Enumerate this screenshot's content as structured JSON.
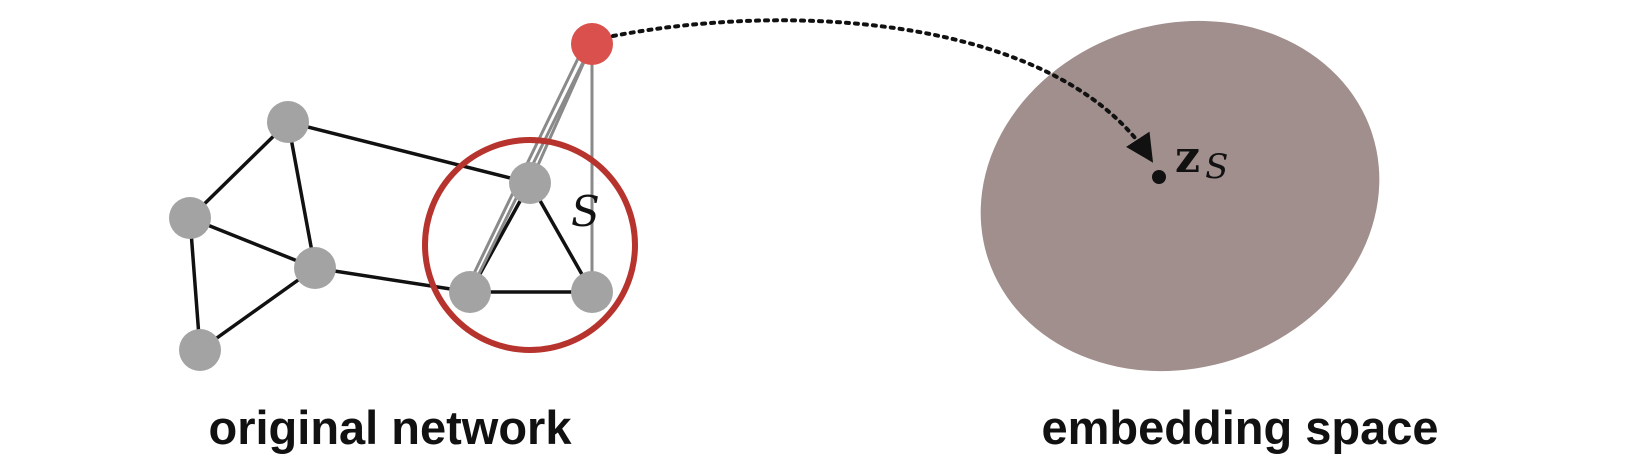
{
  "diagram": {
    "left_caption": "original network",
    "right_caption": "embedding space",
    "subgraph_label": "S",
    "embedding_label_main": "z",
    "embedding_label_sub": "S",
    "colors": {
      "node": "#a3a3a3",
      "edge": "#111111",
      "virtual_node": "#d9504c",
      "virtual_edge": "#8a8a8a",
      "subgraph_circle": "#b7342e",
      "embedding_space": "#a08f8d",
      "arrow": "#111111"
    }
  }
}
